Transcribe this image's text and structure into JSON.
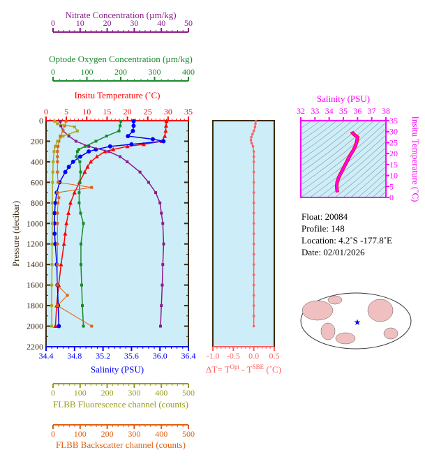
{
  "chart_data": {
    "type": "line",
    "title": "",
    "ylabel": "Pressure (decibar)",
    "ylim": [
      0,
      2200
    ],
    "yticks": [
      "0",
      "200",
      "400",
      "600",
      "800",
      "1000",
      "1200",
      "1400",
      "1600",
      "1800",
      "2000",
      "2200"
    ],
    "axes": {
      "nitrate": {
        "label": "Nitrate Concentration (µm/kg)",
        "range": [
          0,
          50
        ],
        "ticks": [
          "0",
          "10",
          "20",
          "30",
          "40",
          "50"
        ],
        "color": "#8b1a8b"
      },
      "oxygen": {
        "label": "Optode Oxygen Concentration (µm/kg)",
        "range": [
          0,
          400
        ],
        "ticks": [
          "0",
          "100",
          "200",
          "300",
          "400"
        ],
        "color": "#1a8a2a"
      },
      "temperature": {
        "label": "Insitu Temperature (˚C)",
        "range": [
          0,
          35
        ],
        "ticks": [
          "0",
          "5",
          "10",
          "15",
          "20",
          "25",
          "30",
          "35"
        ],
        "color": "#ff0000"
      },
      "salinity": {
        "label": "Salinity (PSU)",
        "range": [
          34.4,
          36.4
        ],
        "ticks": [
          "34.4",
          "34.8",
          "35.2",
          "35.6",
          "36.0",
          "36.4"
        ],
        "color": "#0000ff"
      },
      "fluorescence": {
        "label": "FLBB Fluorescence channel (counts)",
        "range": [
          0,
          500
        ],
        "ticks": [
          "0",
          "100",
          "200",
          "300",
          "400",
          "500"
        ],
        "color": "#9a9a1a"
      },
      "backscatter": {
        "label": "FLBB Backscatter channel (counts)",
        "range": [
          0,
          500
        ],
        "ticks": [
          "0",
          "100",
          "200",
          "300",
          "400",
          "500"
        ],
        "color": "#e06010"
      },
      "dt": {
        "label": "ΔT= T",
        "sup1": "Opt",
        "mid": " - T",
        "sup2": "SBE",
        "end": " (˚C)",
        "range": [
          -1,
          0.5
        ],
        "ticks": [
          "-1.0",
          "-0.5",
          "0.0",
          "0.5"
        ],
        "color": "#ff6060"
      }
    },
    "series": [
      {
        "name": "temperature",
        "axis": "temperature",
        "color": "#ff0000",
        "marker": "triangle",
        "p": [
          5,
          50,
          100,
          150,
          200,
          230,
          250,
          280,
          300,
          350,
          400,
          450,
          500,
          600,
          700,
          800,
          900,
          1000,
          1100,
          1200,
          1400,
          1600,
          1800,
          2000
        ],
        "v": [
          29.6,
          29.5,
          29.4,
          29.2,
          28.5,
          24,
          20,
          16.5,
          14.5,
          12.5,
          11,
          10.2,
          9.5,
          8.2,
          7,
          6,
          5.5,
          5,
          4.7,
          4.4,
          3.7,
          3.1,
          2.6,
          2.3
        ]
      },
      {
        "name": "salinity",
        "axis": "salinity",
        "color": "#0000ff",
        "marker": "circle",
        "p": [
          5,
          50,
          100,
          150,
          180,
          200,
          230,
          250,
          280,
          300,
          350,
          400,
          450,
          500,
          600,
          700,
          800,
          900,
          1000,
          1100,
          1200,
          1400,
          1600,
          1800,
          2000
        ],
        "v": [
          35.63,
          35.63,
          35.62,
          35.55,
          35.9,
          36.05,
          35.6,
          35.3,
          35.1,
          35.0,
          34.88,
          34.78,
          34.72,
          34.67,
          34.59,
          34.55,
          34.53,
          34.52,
          34.52,
          34.52,
          34.53,
          34.55,
          34.56,
          34.57,
          34.58
        ],
        "seriesLabel": "Salinity"
      },
      {
        "name": "oxygen",
        "axis": "oxygen",
        "color": "#1a8a2a",
        "marker": "square",
        "p": [
          5,
          50,
          100,
          150,
          200,
          250,
          280,
          300,
          350,
          400,
          500,
          600,
          700,
          800,
          900,
          1000,
          1200,
          1400,
          1600,
          1800,
          2000
        ],
        "v": [
          210,
          208,
          205,
          170,
          140,
          110,
          92,
          88,
          85,
          95,
          97,
          95,
          93,
          93,
          97,
          105,
          98,
          98,
          100,
          102,
          105
        ]
      },
      {
        "name": "nitrate",
        "axis": "nitrate",
        "color": "#8b1a8b",
        "marker": "square",
        "p": [
          5,
          50,
          100,
          150,
          200,
          250,
          300,
          350,
          400,
          500,
          600,
          700,
          800,
          900,
          1000,
          1200,
          1400,
          1600,
          1800,
          2000
        ],
        "v": [
          5,
          5.2,
          6,
          8,
          10.5,
          15,
          22,
          26,
          28.5,
          33,
          36,
          38.5,
          40,
          40.5,
          41,
          41.3,
          41,
          40.8,
          40.5,
          40.2
        ]
      },
      {
        "name": "backscatter",
        "axis": "backscatter",
        "color": "#e06010",
        "marker": "square",
        "p": [
          5,
          50,
          100,
          150,
          200,
          250,
          300,
          350,
          400,
          500,
          600,
          650,
          700,
          750,
          800,
          900,
          1000,
          1200,
          1400,
          1600,
          1700,
          1800,
          2000
        ],
        "v": [
          70,
          65,
          60,
          50,
          45,
          42,
          40,
          40,
          40,
          40,
          42,
          160,
          40,
          45,
          42,
          40,
          40,
          40,
          40,
          40,
          75,
          40,
          160
        ]
      },
      {
        "name": "fluorescence",
        "axis": "fluorescence",
        "color": "#a8a828",
        "marker": "square",
        "p": [
          5,
          30,
          60,
          100,
          150,
          200,
          250,
          300,
          400,
          500,
          600,
          800,
          1000,
          1200,
          1400,
          1600,
          1800,
          2000
        ],
        "v": [
          30,
          40,
          100,
          110,
          60,
          40,
          32,
          28,
          25,
          24,
          23,
          22,
          22,
          21,
          21,
          20,
          20,
          20
        ]
      },
      {
        "name": "dT",
        "axis": "dt",
        "color": "#ff6060",
        "marker": "circle",
        "p": [
          5,
          30,
          60,
          100,
          130,
          160,
          190,
          220,
          250,
          300,
          350,
          400,
          500,
          600,
          700,
          800,
          900,
          1000,
          1100,
          1200,
          1300,
          1400,
          1500,
          1600,
          1700,
          1800,
          1900,
          2000
        ],
        "v": [
          0.05,
          0.04,
          0.03,
          0.0,
          -0.03,
          -0.06,
          -0.07,
          -0.05,
          -0.02,
          0,
          0,
          0,
          0,
          0,
          0,
          0,
          0,
          0,
          0,
          0,
          0,
          0,
          0,
          0,
          0,
          0,
          0,
          0
        ]
      }
    ],
    "ts": {
      "xlabel": "Salinity (PSU)",
      "ylabel": "Insitu Temperature (˚C)",
      "xticks": [
        "32",
        "33",
        "34",
        "35",
        "36",
        "37",
        "38"
      ],
      "yticks": [
        "0",
        "5",
        "10",
        "15",
        "20",
        "25",
        "30",
        "35"
      ],
      "xlim": [
        32,
        38
      ],
      "ylim": [
        0,
        35
      ],
      "color": "#ff00ff",
      "s": [
        34.58,
        34.55,
        34.53,
        34.56,
        34.7,
        34.9,
        35.1,
        35.3,
        35.5,
        35.7,
        35.85,
        35.95,
        36.0,
        35.8,
        35.63,
        35.6
      ],
      "t": [
        2.3,
        3.5,
        5,
        7,
        9.5,
        12,
        14.5,
        17,
        19.5,
        21.5,
        23.5,
        25.5,
        27.5,
        28.5,
        29.5,
        30
      ]
    }
  },
  "info": {
    "float": "Float:  20084",
    "profile": "Profile:  148",
    "location": "Location:  4.2˚S  -177.8˚E",
    "date": "Date:  02/01/2026"
  }
}
